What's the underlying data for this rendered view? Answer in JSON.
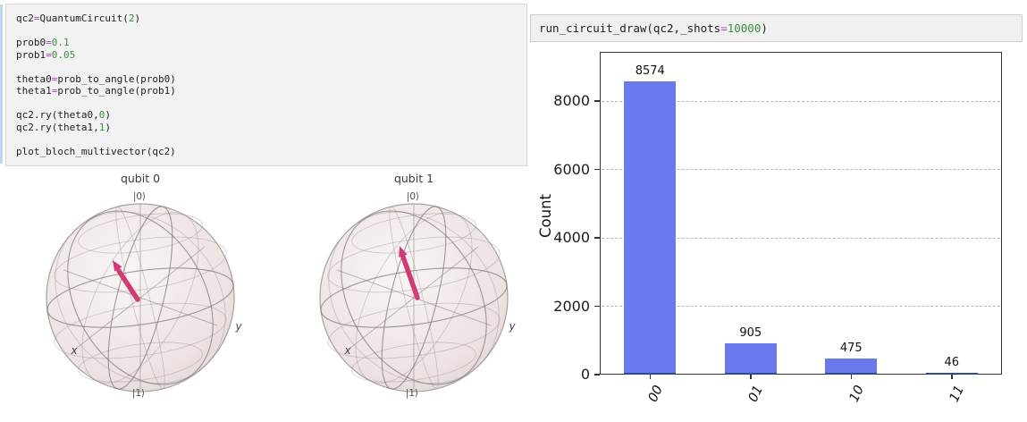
{
  "colors": {
    "bar": "#6a79ec",
    "bar_bottom_edge": "#2e4a94",
    "arrow": "#d23a74",
    "operator": "#ab47bc",
    "number": "#3a8f3c"
  },
  "code_cell": {
    "lines": [
      [
        {
          "t": "qc2",
          "c": "d"
        },
        {
          "t": "=",
          "c": "o"
        },
        {
          "t": "QuantumCircuit(",
          "c": "d"
        },
        {
          "t": "2",
          "c": "n"
        },
        {
          "t": ")",
          "c": "d"
        }
      ],
      [],
      [
        {
          "t": "prob0",
          "c": "d"
        },
        {
          "t": "=",
          "c": "o"
        },
        {
          "t": "0.1",
          "c": "n"
        }
      ],
      [
        {
          "t": "prob1",
          "c": "d"
        },
        {
          "t": "=",
          "c": "o"
        },
        {
          "t": "0.05",
          "c": "n"
        }
      ],
      [],
      [
        {
          "t": "theta0",
          "c": "d"
        },
        {
          "t": "=",
          "c": "o"
        },
        {
          "t": "prob_to_angle(prob0)",
          "c": "d"
        }
      ],
      [
        {
          "t": "theta1",
          "c": "d"
        },
        {
          "t": "=",
          "c": "o"
        },
        {
          "t": "prob_to_angle(prob1)",
          "c": "d"
        }
      ],
      [],
      [
        {
          "t": "qc2.ry(theta0,",
          "c": "d"
        },
        {
          "t": "0",
          "c": "n"
        },
        {
          "t": ")",
          "c": "d"
        }
      ],
      [
        {
          "t": "qc2.ry(theta1,",
          "c": "d"
        },
        {
          "t": "1",
          "c": "n"
        },
        {
          "t": ")",
          "c": "d"
        }
      ],
      [],
      [
        {
          "t": "plot_bloch_multivector(qc2)",
          "c": "d"
        }
      ]
    ]
  },
  "run_cell": {
    "lines": [
      [
        {
          "t": "run_circuit_draw(qc2,_shots",
          "c": "d"
        },
        {
          "t": "=",
          "c": "o"
        },
        {
          "t": "10000",
          "c": "n"
        },
        {
          "t": ")",
          "c": "d"
        }
      ]
    ]
  },
  "bloch": {
    "figures": [
      {
        "title": "qubit 0",
        "top_label": "|0⟩",
        "bottom_label": "|1⟩",
        "x_axis_label": "x",
        "y_axis_label": "y"
      },
      {
        "title": "qubit 1",
        "top_label": "|0⟩",
        "bottom_label": "|1⟩",
        "x_axis_label": "x",
        "y_axis_label": "y"
      }
    ]
  },
  "chart_data": {
    "type": "bar",
    "categories": [
      "00",
      "01",
      "10",
      "11"
    ],
    "values": [
      8574,
      905,
      475,
      46
    ],
    "bar_value_labels": [
      "8574",
      "905",
      "475",
      "46"
    ],
    "title": "",
    "xlabel": "",
    "ylabel": "Count",
    "ylim": [
      0,
      9440
    ],
    "yticks": [
      0,
      2000,
      4000,
      6000,
      8000
    ],
    "grid": "horizontal-dashed",
    "legend": "none",
    "x_tick_style": "italic, rotated ~65deg"
  }
}
